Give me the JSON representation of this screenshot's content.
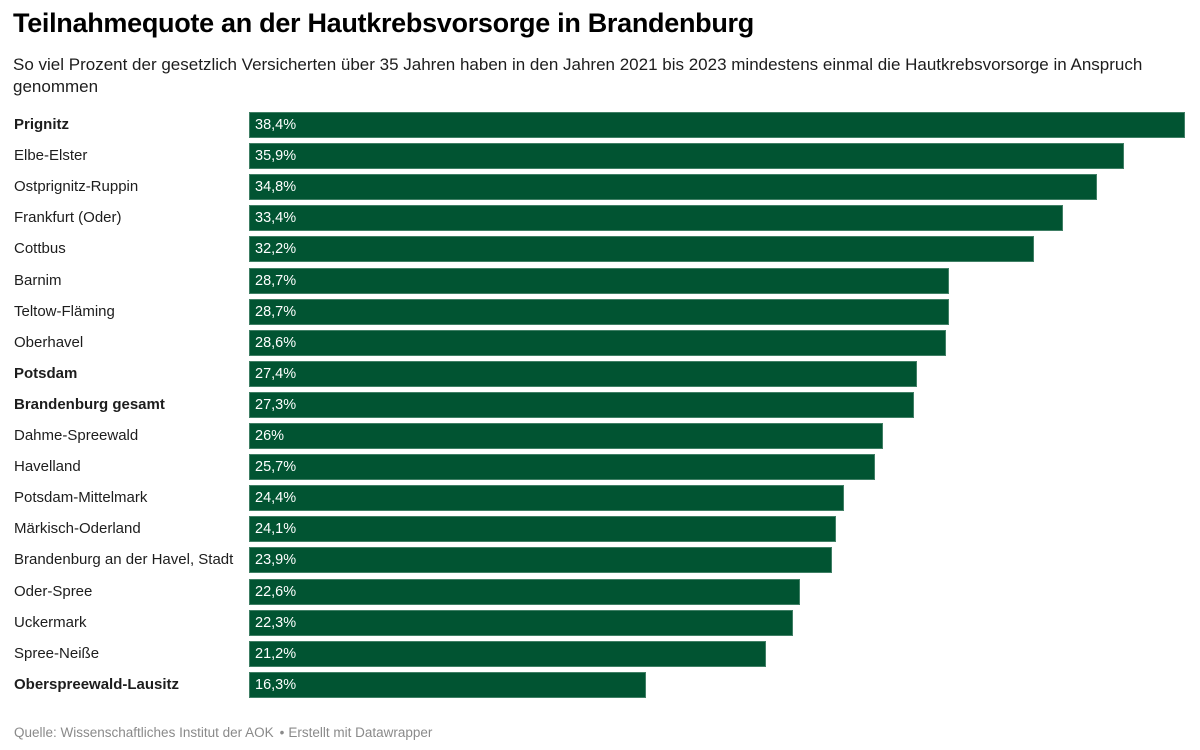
{
  "header": {
    "title": "Teilnahmequote an der Hautkrebsvorsorge in Brandenburg",
    "subtitle": "So viel Prozent der gesetzlich Versicherten über 35 Jahren haben in den Jahren 2021 bis 2023 mindestens einmal die Hautkrebsvorsorge in Anspruch genommen"
  },
  "footer": {
    "source": "Quelle: Wissenschaftliches Institut der AOK",
    "separator": "•",
    "credit": "Erstellt mit Datawrapper"
  },
  "chart_data": {
    "type": "bar",
    "orientation": "horizontal",
    "title": "Teilnahmequote an der Hautkrebsvorsorge in Brandenburg",
    "subtitle": "So viel Prozent der gesetzlich Versicherten über 35 Jahren haben in den Jahren 2021 bis 2023 mindestens einmal die Hautkrebsvorsorge in Anspruch genommen",
    "xlabel": "",
    "ylabel": "",
    "unit": "%",
    "xlim": [
      0,
      38.4
    ],
    "grid": false,
    "bar_color": "#015432",
    "categories": [
      "Prignitz",
      "Elbe-Elster",
      "Ostprignitz-Ruppin",
      "Frankfurt (Oder)",
      "Cottbus",
      "Barnim",
      "Teltow-Fläming",
      "Oberhavel",
      "Potsdam",
      "Brandenburg gesamt",
      "Dahme-Spreewald",
      "Havelland",
      "Potsdam-Mittelmark",
      "Märkisch-Oderland",
      "Brandenburg an der Havel, Stadt",
      "Oder-Spree",
      "Uckermark",
      "Spree-Neiße",
      "Oberspreewald-Lausitz"
    ],
    "values": [
      38.4,
      35.9,
      34.8,
      33.4,
      32.2,
      28.7,
      28.7,
      28.6,
      27.4,
      27.3,
      26.0,
      25.7,
      24.4,
      24.1,
      23.9,
      22.6,
      22.3,
      21.2,
      16.3
    ],
    "value_labels": [
      "38,4%",
      "35,9%",
      "34,8%",
      "33,4%",
      "32,2%",
      "28,7%",
      "28,7%",
      "28,6%",
      "27,4%",
      "27,3%",
      "26%",
      "25,7%",
      "24,4%",
      "24,1%",
      "23,9%",
      "22,6%",
      "22,3%",
      "21,2%",
      "16,3%"
    ],
    "highlighted": [
      "Prignitz",
      "Potsdam",
      "Brandenburg gesamt",
      "Oberspreewald-Lausitz"
    ]
  }
}
